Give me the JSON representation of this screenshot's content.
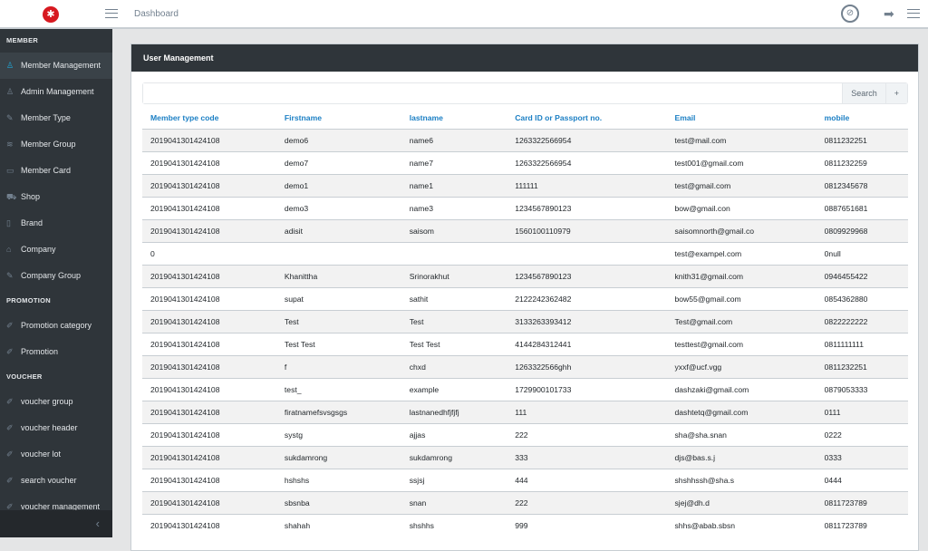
{
  "header": {
    "breadcrumb": "Dashboard"
  },
  "sidebar": {
    "sections": [
      {
        "title": "MEMBER",
        "items": [
          {
            "label": "Member Management",
            "icon": "user-icon",
            "active": true
          },
          {
            "label": "Admin Management",
            "icon": "user-icon"
          },
          {
            "label": "Member Type",
            "icon": "edit-icon"
          },
          {
            "label": "Member Group",
            "icon": "layers-icon"
          },
          {
            "label": "Member Card",
            "icon": "credit-card-icon"
          },
          {
            "label": "Shop",
            "icon": "cart-icon"
          },
          {
            "label": "Brand",
            "icon": "book-icon"
          },
          {
            "label": "Company",
            "icon": "home-icon"
          },
          {
            "label": "Company Group",
            "icon": "edit-icon"
          }
        ]
      },
      {
        "title": "PROMOTION",
        "items": [
          {
            "label": "Promotion category",
            "icon": "pencil-icon"
          },
          {
            "label": "Promotion",
            "icon": "pencil-icon"
          }
        ]
      },
      {
        "title": "VOUCHER",
        "items": [
          {
            "label": "voucher group",
            "icon": "pencil-icon"
          },
          {
            "label": "voucher header",
            "icon": "pencil-icon"
          },
          {
            "label": "voucher lot",
            "icon": "pencil-icon"
          },
          {
            "label": "search voucher",
            "icon": "pencil-icon"
          },
          {
            "label": "voucher management",
            "icon": "pencil-icon"
          }
        ]
      }
    ]
  },
  "card": {
    "title": "User Management",
    "search_label": "Search",
    "add_label": "+",
    "search_value": ""
  },
  "table": {
    "columns": [
      "Member type code",
      "Firstname",
      "lastname",
      "Card ID or Passport no.",
      "Email",
      "mobile"
    ],
    "rows": [
      [
        "2019041301424108",
        "demo6",
        "name6",
        "1263322566954",
        "test@mail.com",
        "0811232251"
      ],
      [
        "2019041301424108",
        "demo7",
        "name7",
        "1263322566954",
        "test001@gmail.com",
        "0811232259"
      ],
      [
        "2019041301424108",
        "demo1",
        "name1",
        "111111",
        "test@gmail.com",
        "0812345678"
      ],
      [
        "2019041301424108",
        "demo3",
        "name3",
        "1234567890123",
        "bow@gmail.con",
        "0887651681"
      ],
      [
        "2019041301424108",
        "adisit",
        "saisom",
        "1560100110979",
        "saisomnorth@gmail.co",
        "0809929968"
      ],
      [
        "0",
        "",
        "",
        "",
        "test@exampel.com",
        "0null"
      ],
      [
        "2019041301424108",
        "Khanittha",
        "Srinorakhut",
        "1234567890123",
        "knith31@gmail.com",
        "0946455422"
      ],
      [
        "2019041301424108",
        "supat",
        "sathit",
        "2122242362482",
        "bow55@gmail.com",
        "0854362880"
      ],
      [
        "2019041301424108",
        "Test",
        "Test",
        "3133263393412",
        "Test@gmail.com",
        "0822222222"
      ],
      [
        "2019041301424108",
        "Test Test",
        "Test Test",
        "4144284312441",
        "testtest@gmail.com",
        "0811111111"
      ],
      [
        "2019041301424108",
        "f",
        "chxd",
        "1263322566ghh",
        "yxxf@ucf.vgg",
        "0811232251"
      ],
      [
        "2019041301424108",
        "test_",
        "example",
        "1729900101733",
        "dashzaki@gmail.com",
        "0879053333"
      ],
      [
        "2019041301424108",
        "firatnamefsvsgsgs",
        "lastnanedhfjfjfj",
        "111",
        "dashtetq@gmail.com",
        "0111"
      ],
      [
        "2019041301424108",
        "systg",
        "ajjas",
        "222",
        "sha@sha.snan",
        "0222"
      ],
      [
        "2019041301424108",
        "sukdamrong",
        "sukdamrong",
        "333",
        "djs@bas.s.j",
        "0333"
      ],
      [
        "2019041301424108",
        "hshshs",
        "ssjsj",
        "444",
        "shshhssh@sha.s",
        "0444"
      ],
      [
        "2019041301424108",
        "sbsnba",
        "snan",
        "222",
        "sjej@dh.d",
        "0811723789"
      ],
      [
        "2019041301424108",
        "shahah",
        "shshhs",
        "999",
        "shhs@abab.sbsn",
        "0811723789"
      ]
    ]
  },
  "colors": {
    "sidebar": "#2f353a",
    "accent": "#20a8d8",
    "link": "#1b7fc4",
    "logo": "#d71920"
  }
}
